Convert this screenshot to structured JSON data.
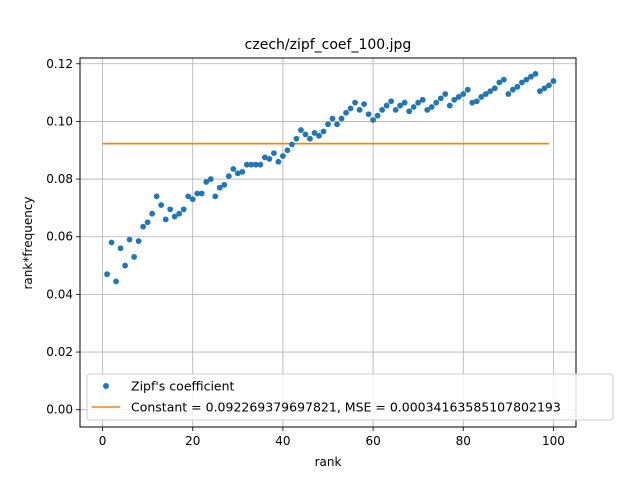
{
  "chart_data": {
    "type": "scatter",
    "title": "czech/zipf_coef_100.jpg",
    "xlabel": "rank",
    "ylabel": "rank*frequency",
    "xlim": [
      -5,
      105
    ],
    "ylim": [
      -0.006,
      0.122
    ],
    "xticks": [
      0,
      20,
      40,
      60,
      80,
      100
    ],
    "yticks": [
      0.0,
      0.02,
      0.04,
      0.06,
      0.08,
      0.1,
      0.12
    ],
    "xtick_labels": [
      "0",
      "20",
      "40",
      "60",
      "80",
      "100"
    ],
    "ytick_labels": [
      "0.00",
      "0.02",
      "0.04",
      "0.06",
      "0.08",
      "0.10",
      "0.12"
    ],
    "grid": true,
    "legend_position": "lower-right",
    "series": [
      {
        "name": "Zipf's coefficient",
        "kind": "scatter",
        "color": "#1f77b4",
        "x": [
          1,
          2,
          3,
          4,
          5,
          6,
          7,
          8,
          9,
          10,
          11,
          12,
          13,
          14,
          15,
          16,
          17,
          18,
          19,
          20,
          21,
          22,
          23,
          24,
          25,
          26,
          27,
          28,
          29,
          30,
          31,
          32,
          33,
          34,
          35,
          36,
          37,
          38,
          39,
          40,
          41,
          42,
          43,
          44,
          45,
          46,
          47,
          48,
          49,
          50,
          51,
          52,
          53,
          54,
          55,
          56,
          57,
          58,
          59,
          60,
          61,
          62,
          63,
          64,
          65,
          66,
          67,
          68,
          69,
          70,
          71,
          72,
          73,
          74,
          75,
          76,
          77,
          78,
          79,
          80,
          81,
          82,
          83,
          84,
          85,
          86,
          87,
          88,
          89,
          90,
          91,
          92,
          93,
          94,
          95,
          96,
          97,
          98,
          99,
          100
        ],
        "y": [
          0.047,
          0.058,
          0.0445,
          0.056,
          0.05,
          0.059,
          0.053,
          0.0585,
          0.0635,
          0.065,
          0.068,
          0.074,
          0.071,
          0.066,
          0.0695,
          0.067,
          0.068,
          0.0695,
          0.074,
          0.073,
          0.075,
          0.075,
          0.079,
          0.08,
          0.074,
          0.077,
          0.078,
          0.081,
          0.0835,
          0.082,
          0.0825,
          0.085,
          0.085,
          0.085,
          0.085,
          0.0875,
          0.087,
          0.089,
          0.086,
          0.088,
          0.09,
          0.092,
          0.094,
          0.097,
          0.0955,
          0.094,
          0.096,
          0.095,
          0.0965,
          0.099,
          0.101,
          0.099,
          0.101,
          0.103,
          0.1045,
          0.1065,
          0.104,
          0.106,
          0.1025,
          0.1005,
          0.102,
          0.104,
          0.1055,
          0.107,
          0.104,
          0.1055,
          0.1065,
          0.1035,
          0.105,
          0.1065,
          0.1075,
          0.104,
          0.105,
          0.1065,
          0.108,
          0.1095,
          0.1055,
          0.1075,
          0.1085,
          0.1095,
          0.111,
          0.1065,
          0.107,
          0.1085,
          0.1095,
          0.1105,
          0.1115,
          0.1135,
          0.1145,
          0.1095,
          0.111,
          0.112,
          0.1135,
          0.1145,
          0.1155,
          0.1165,
          0.1105,
          0.1115,
          0.1125,
          0.114
        ]
      },
      {
        "name": "Constant = 0.092269379697821, MSE = 0.00034163585107802193",
        "kind": "line",
        "color": "#ff7f0e",
        "x": [
          0,
          99
        ],
        "y": [
          0.092269379697821,
          0.092269379697821
        ]
      }
    ]
  }
}
